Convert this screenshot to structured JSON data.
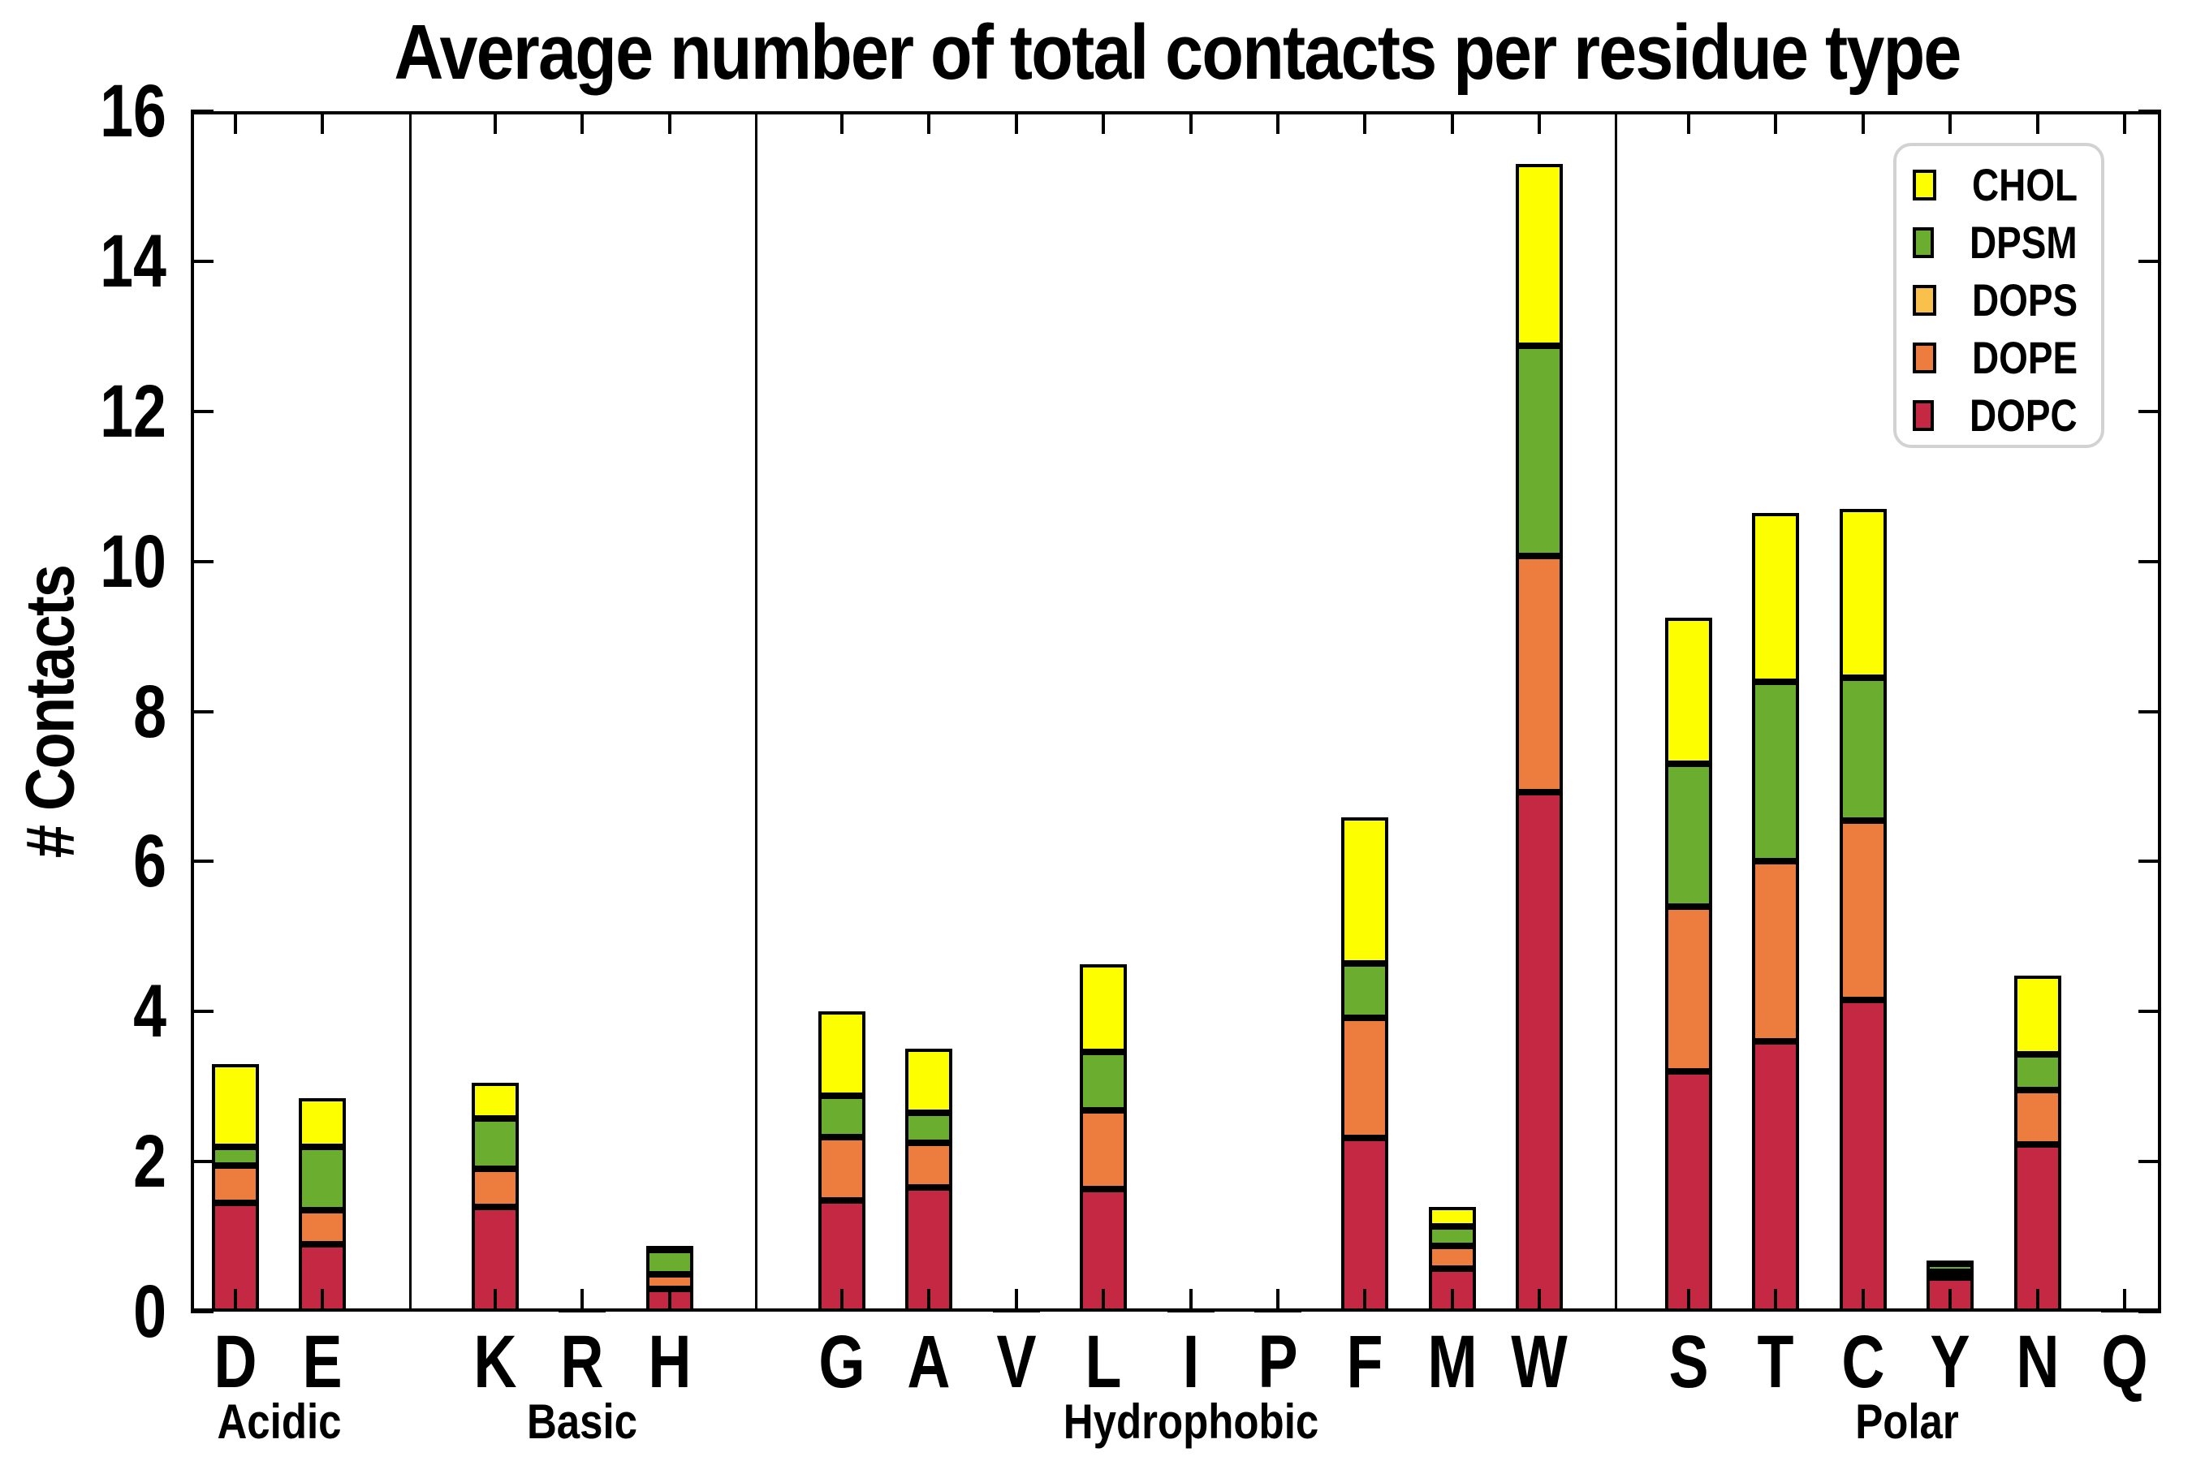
{
  "chart_data": {
    "type": "bar",
    "stacked": true,
    "title": "Average number of total contacts per residue type",
    "ylabel": "# Contacts",
    "xlabel": "",
    "ylim": [
      0,
      16
    ],
    "yticks": [
      0,
      2,
      4,
      6,
      8,
      10,
      12,
      14,
      16
    ],
    "grid": false,
    "legend_position": "upper right",
    "legend": [
      {
        "name": "CHOL",
        "color": "#FDFE00"
      },
      {
        "name": "DPSM",
        "color": "#6BAD2E"
      },
      {
        "name": "DOPS",
        "color": "#F9C14C"
      },
      {
        "name": "DOPE",
        "color": "#ED7D3F"
      },
      {
        "name": "DOPC",
        "color": "#C42843"
      }
    ],
    "stack_order_bottom_to_top": [
      "DOPC",
      "DOPE",
      "DOPS",
      "DPSM",
      "CHOL"
    ],
    "groups": [
      {
        "label": "Acidic",
        "bars": [
          {
            "residue": "D",
            "DOPC": 1.45,
            "DOPE": 0.5,
            "DOPS": 0,
            "DPSM": 0.25,
            "CHOL": 1.1
          },
          {
            "residue": "E",
            "DOPC": 0.9,
            "DOPE": 0.45,
            "DOPS": 0,
            "DPSM": 0.85,
            "CHOL": 0.65
          }
        ]
      },
      {
        "label": "Basic",
        "bars": [
          {
            "residue": "K",
            "DOPC": 1.4,
            "DOPE": 0.5,
            "DOPS": 0,
            "DPSM": 0.68,
            "CHOL": 0.47
          },
          {
            "residue": "R",
            "DOPC": 0.01,
            "DOPE": 0,
            "DOPS": 0,
            "DPSM": 0,
            "CHOL": 0.01
          },
          {
            "residue": "H",
            "DOPC": 0.3,
            "DOPE": 0.2,
            "DOPS": 0,
            "DPSM": 0.32,
            "CHOL": 0.06
          }
        ]
      },
      {
        "label": "Hydrophobic",
        "bars": [
          {
            "residue": "G",
            "DOPC": 1.48,
            "DOPE": 0.85,
            "DOPS": 0,
            "DPSM": 0.55,
            "CHOL": 1.12
          },
          {
            "residue": "A",
            "DOPC": 1.65,
            "DOPE": 0.6,
            "DOPS": 0,
            "DPSM": 0.4,
            "CHOL": 0.85
          },
          {
            "residue": "V",
            "DOPC": 0.01,
            "DOPE": 0,
            "DOPS": 0,
            "DPSM": 0,
            "CHOL": 0.01
          },
          {
            "residue": "L",
            "DOPC": 1.63,
            "DOPE": 1.05,
            "DOPS": 0,
            "DPSM": 0.78,
            "CHOL": 1.17
          },
          {
            "residue": "I",
            "DOPC": 0.01,
            "DOPE": 0,
            "DOPS": 0,
            "DPSM": 0,
            "CHOL": 0.01
          },
          {
            "residue": "P",
            "DOPC": 0.01,
            "DOPE": 0,
            "DOPS": 0,
            "DPSM": 0,
            "CHOL": 0.01
          },
          {
            "residue": "F",
            "DOPC": 2.32,
            "DOPE": 1.6,
            "DOPS": 0,
            "DPSM": 0.72,
            "CHOL": 1.95
          },
          {
            "residue": "M",
            "DOPC": 0.57,
            "DOPE": 0.31,
            "DOPS": 0,
            "DPSM": 0.26,
            "CHOL": 0.26
          },
          {
            "residue": "W",
            "DOPC": 6.92,
            "DOPE": 3.15,
            "DOPS": 0,
            "DPSM": 2.8,
            "CHOL": 2.43
          }
        ]
      },
      {
        "label": "Polar",
        "bars": [
          {
            "residue": "S",
            "DOPC": 3.2,
            "DOPE": 2.2,
            "DOPS": 0,
            "DPSM": 1.9,
            "CHOL": 1.95
          },
          {
            "residue": "T",
            "DOPC": 3.6,
            "DOPE": 2.4,
            "DOPS": 0,
            "DPSM": 2.4,
            "CHOL": 2.25
          },
          {
            "residue": "C",
            "DOPC": 4.15,
            "DOPE": 2.4,
            "DOPS": 0,
            "DPSM": 1.9,
            "CHOL": 2.25
          },
          {
            "residue": "Y",
            "DOPC": 0.45,
            "DOPE": 0.08,
            "DOPS": 0,
            "DPSM": 0.11,
            "CHOL": 0.04
          },
          {
            "residue": "N",
            "DOPC": 2.23,
            "DOPE": 0.72,
            "DOPS": 0,
            "DPSM": 0.48,
            "CHOL": 1.05
          },
          {
            "residue": "Q",
            "DOPC": 0.01,
            "DOPE": 0,
            "DOPS": 0,
            "DPSM": 0,
            "CHOL": 0.01
          }
        ]
      }
    ]
  }
}
